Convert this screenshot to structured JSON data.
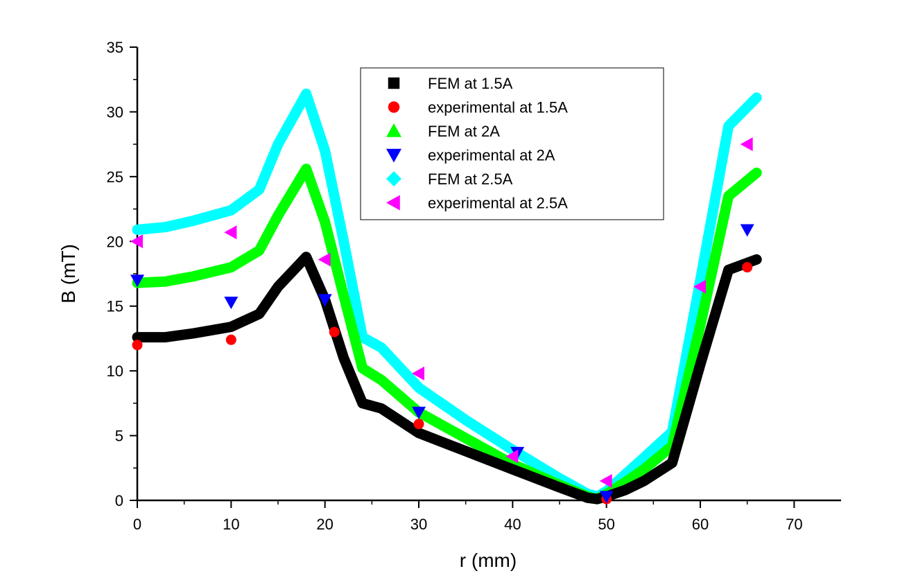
{
  "chart_data": {
    "type": "line",
    "title": "",
    "xlabel": "r (mm)",
    "ylabel": "B (mT)",
    "xlim": [
      0,
      75
    ],
    "ylim": [
      0,
      35
    ],
    "xticks": [
      0,
      10,
      20,
      30,
      40,
      50,
      60,
      70
    ],
    "yticks": [
      0,
      5,
      10,
      15,
      20,
      25,
      30,
      35
    ],
    "xtick_labels": [
      "0",
      "10",
      "20",
      "30",
      "40",
      "50",
      "60",
      "70"
    ],
    "ytick_labels": [
      "0",
      "5",
      "10",
      "15",
      "20",
      "25",
      "30",
      "35"
    ],
    "grid": false,
    "legend_position": "top-center",
    "series": [
      {
        "name": "FEM at 1.5A",
        "kind": "line",
        "color": "#000000",
        "marker": "square",
        "x": [
          0,
          3,
          6,
          10,
          13,
          15,
          18,
          20,
          22,
          24,
          26,
          30,
          35,
          40,
          45,
          48,
          49,
          50,
          52,
          54,
          57,
          60,
          63,
          66
        ],
        "y": [
          12.6,
          12.6,
          12.9,
          13.4,
          14.4,
          16.5,
          18.8,
          15.5,
          11,
          7.5,
          7.1,
          5.2,
          3.8,
          2.4,
          1.0,
          0.2,
          0.1,
          0.3,
          0.8,
          1.5,
          2.9,
          10.5,
          17.8,
          18.6
        ]
      },
      {
        "name": "experimental at 1.5A",
        "kind": "points",
        "color": "#ff0000",
        "marker": "circle",
        "x": [
          0,
          10,
          21,
          30,
          50,
          65
        ],
        "y": [
          12.0,
          12.4,
          13.0,
          5.9,
          0.1,
          18.0
        ]
      },
      {
        "name": "FEM at 2A",
        "kind": "line",
        "color": "#00ff00",
        "marker": "triangle-up",
        "x": [
          0,
          3,
          6,
          10,
          13,
          15,
          18,
          20,
          22,
          24,
          26,
          30,
          35,
          40,
          45,
          48,
          49,
          50,
          52,
          54,
          57,
          60,
          63,
          66
        ],
        "y": [
          16.8,
          16.9,
          17.3,
          18.0,
          19.3,
          22.0,
          25.6,
          21.5,
          15.8,
          10.2,
          9.3,
          6.8,
          4.8,
          2.8,
          1.2,
          0.3,
          0.1,
          0.5,
          1.4,
          2.4,
          4.2,
          13.5,
          23.5,
          25.3
        ]
      },
      {
        "name": "experimental at 2A",
        "kind": "points",
        "color": "#0000ff",
        "marker": "triangle-down",
        "x": [
          0,
          10,
          20,
          30,
          40.5,
          50,
          65
        ],
        "y": [
          17.0,
          15.3,
          15.5,
          6.8,
          3.7,
          0.3,
          20.9
        ]
      },
      {
        "name": "FEM at 2.5A",
        "kind": "line",
        "color": "#00ffff",
        "marker": "diamond",
        "x": [
          0,
          3,
          6,
          10,
          13,
          15,
          18,
          20,
          22,
          24,
          26,
          30,
          35,
          40,
          45,
          48,
          49,
          50,
          52,
          54,
          57,
          60,
          63,
          66
        ],
        "y": [
          20.9,
          21.1,
          21.6,
          22.4,
          24.0,
          27.5,
          31.4,
          27.0,
          20.0,
          12.6,
          11.8,
          8.7,
          6.2,
          3.9,
          1.7,
          0.5,
          0.3,
          0.7,
          2.0,
          3.3,
          5.3,
          17.0,
          28.9,
          31.1
        ]
      },
      {
        "name": "experimental at 2.5A",
        "kind": "points",
        "color": "#ff00ff",
        "marker": "triangle-left",
        "x": [
          0,
          10,
          20,
          30,
          40,
          50,
          60,
          65
        ],
        "y": [
          20.0,
          20.7,
          18.6,
          9.8,
          3.4,
          1.5,
          16.5,
          27.5
        ]
      }
    ]
  }
}
